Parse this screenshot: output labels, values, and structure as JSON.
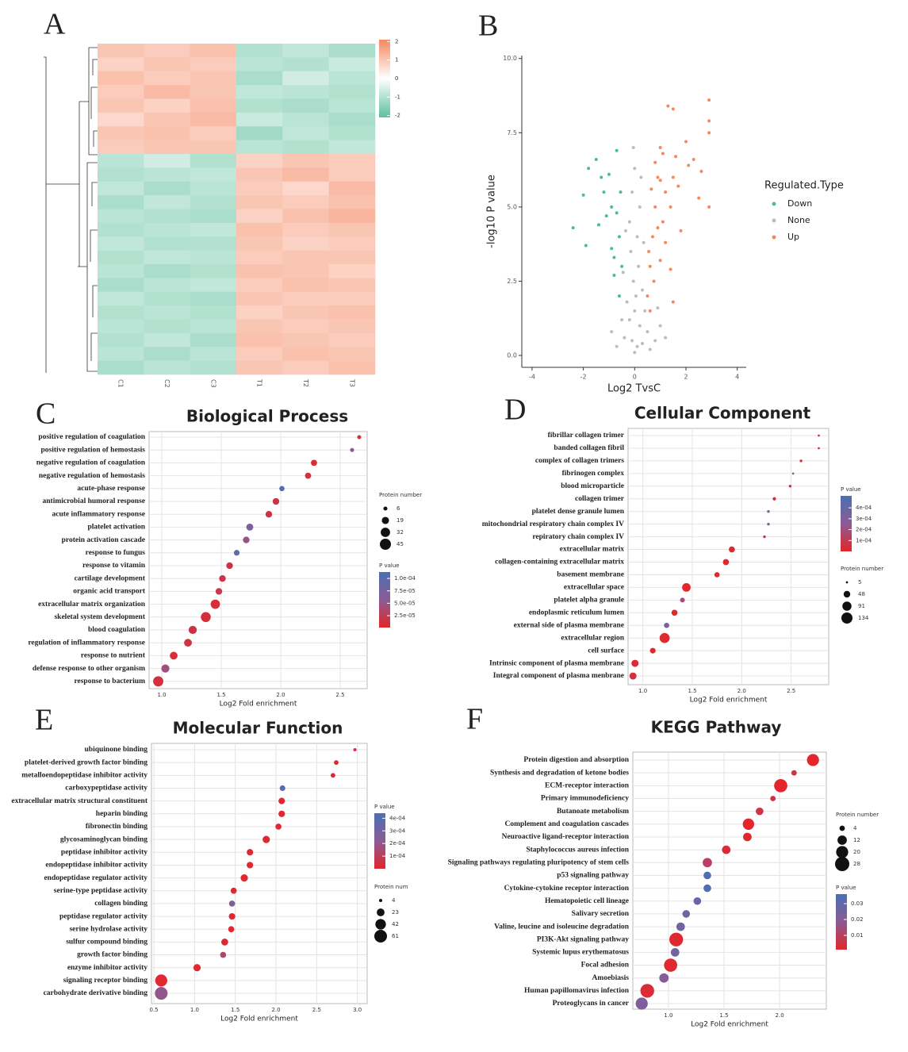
{
  "chart_data": [
    {
      "type": "heatmap",
      "panel_label": "A",
      "columns": [
        "C1",
        "C2",
        "C3",
        "T1",
        "T2",
        "T3"
      ],
      "values": [
        [
          1.0,
          0.9,
          1.1,
          -1.0,
          -0.8,
          -1.1
        ],
        [
          0.8,
          1.0,
          0.9,
          -0.9,
          -1.0,
          -0.7
        ],
        [
          1.1,
          0.9,
          1.0,
          -1.1,
          -0.6,
          -0.9
        ],
        [
          0.9,
          1.2,
          1.0,
          -0.8,
          -0.9,
          -1.0
        ],
        [
          1.0,
          0.8,
          1.1,
          -1.0,
          -1.1,
          -0.9
        ],
        [
          0.7,
          1.0,
          1.2,
          -0.7,
          -0.9,
          -1.1
        ],
        [
          1.0,
          1.1,
          0.9,
          -1.2,
          -0.8,
          -1.0
        ],
        [
          0.9,
          1.0,
          1.0,
          -0.9,
          -1.0,
          -0.8
        ],
        [
          -0.9,
          -0.6,
          -1.0,
          0.8,
          1.0,
          0.9
        ],
        [
          -1.0,
          -0.9,
          -0.8,
          1.0,
          1.2,
          0.9
        ],
        [
          -0.8,
          -1.1,
          -0.9,
          0.9,
          0.7,
          1.2
        ],
        [
          -1.1,
          -0.8,
          -1.0,
          1.0,
          0.9,
          1.1
        ],
        [
          -0.9,
          -1.0,
          -1.1,
          0.8,
          1.1,
          1.3
        ],
        [
          -1.0,
          -0.9,
          -0.8,
          1.1,
          0.9,
          1.0
        ],
        [
          -0.8,
          -1.0,
          -1.0,
          1.0,
          0.8,
          0.9
        ],
        [
          -1.0,
          -0.8,
          -0.9,
          0.9,
          1.0,
          1.0
        ],
        [
          -0.9,
          -1.1,
          -1.0,
          1.1,
          1.0,
          0.8
        ],
        [
          -1.1,
          -0.9,
          -0.8,
          0.9,
          1.1,
          1.0
        ],
        [
          -0.8,
          -1.0,
          -1.1,
          1.0,
          0.9,
          0.9
        ],
        [
          -1.0,
          -0.9,
          -1.0,
          0.8,
          1.0,
          1.1
        ],
        [
          -0.9,
          -1.0,
          -0.9,
          1.0,
          0.9,
          1.0
        ],
        [
          -1.0,
          -0.8,
          -1.1,
          1.1,
          1.0,
          0.9
        ],
        [
          -0.9,
          -1.1,
          -0.9,
          0.9,
          1.1,
          1.0
        ],
        [
          -1.1,
          -0.9,
          -1.0,
          1.0,
          0.9,
          1.1
        ]
      ],
      "zlim": [
        -2.1,
        2.1
      ],
      "zticks": [
        2,
        1,
        0,
        -1,
        -2
      ],
      "colors": [
        "#5dbf9d",
        "#ffffff",
        "#f58862"
      ]
    },
    {
      "type": "scatter",
      "panel_label": "B",
      "x_label": "Log2 TvsC",
      "y_label": "-log10 P value",
      "legend_title": "Regulated.Type",
      "xlim": [
        -4.4,
        4.35
      ],
      "xticks": [
        -4,
        -2,
        0,
        2,
        4
      ],
      "ylim": [
        -0.4,
        10.1
      ],
      "yticks": [
        {
          "value": 0,
          "label": "0.0"
        },
        {
          "value": 2.5,
          "label": "2.5"
        },
        {
          "value": 5,
          "label": "5.0"
        },
        {
          "value": 7.5,
          "label": "7.5"
        },
        {
          "value": 10,
          "label": "10.0"
        }
      ],
      "series": [
        {
          "name": "Down",
          "color": "#4fba96",
          "x": [
            -2.4,
            -2.0,
            -1.8,
            -1.5,
            -1.4,
            -1.2,
            -1.0,
            -0.9,
            -0.8,
            -0.7,
            -0.6,
            -0.5,
            -0.9,
            -1.1,
            -0.7,
            -1.9,
            -0.6,
            -0.8,
            -1.3,
            -0.55
          ],
          "values": [
            4.3,
            5.4,
            6.3,
            6.6,
            4.4,
            5.5,
            6.1,
            3.6,
            2.7,
            4.8,
            2.0,
            3.0,
            5.0,
            4.7,
            6.9,
            3.7,
            4.0,
            3.3,
            6.0,
            5.5
          ]
        },
        {
          "name": "None",
          "color": "#bdbdbd",
          "x": [
            0,
            0.1,
            -0.1,
            0.2,
            -0.2,
            0.3,
            -0.4,
            0.5,
            0.8,
            1.0,
            -0.7,
            0.05,
            -0.05,
            0.15,
            -0.15,
            0.1,
            -0.2,
            0.2,
            -0.1,
            0.0,
            0.3,
            -0.3,
            0.4,
            -0.45,
            0.35,
            -0.35,
            1.2,
            0.6,
            -0.9,
            0.0,
            -0.05,
            0.25,
            0.9,
            -0.5
          ],
          "values": [
            0.1,
            0.3,
            0.5,
            1.0,
            1.2,
            0.4,
            0.6,
            0.8,
            0.5,
            1.0,
            0.3,
            2.0,
            2.5,
            3.0,
            3.5,
            4.0,
            4.5,
            5.0,
            5.5,
            6.3,
            2.2,
            1.8,
            1.5,
            2.8,
            3.8,
            4.2,
            0.6,
            0.2,
            0.8,
            1.5,
            7.0,
            6.0,
            1.6,
            1.2
          ]
        },
        {
          "name": "Up",
          "color": "#f4895f",
          "x": [
            0.5,
            0.6,
            0.7,
            0.8,
            0.9,
            1.0,
            1.1,
            1.2,
            1.3,
            1.5,
            1.6,
            1.8,
            2.0,
            2.3,
            2.5,
            2.9,
            2.9,
            2.9,
            2.9,
            1.5,
            1.4,
            0.55,
            0.6,
            0.75,
            1.0,
            1.2,
            0.9,
            1.4,
            1.7,
            2.1,
            1.0,
            0.8,
            1.5,
            1.1,
            0.65,
            2.6
          ],
          "values": [
            2.0,
            3.0,
            4.0,
            5.0,
            6.0,
            7.0,
            4.5,
            5.5,
            8.4,
            8.3,
            6.7,
            4.2,
            7.2,
            6.6,
            5.3,
            8.6,
            7.5,
            7.9,
            5.0,
            1.8,
            2.9,
            3.5,
            1.5,
            2.5,
            3.2,
            3.8,
            4.3,
            5.0,
            5.7,
            6.4,
            5.9,
            6.5,
            6.0,
            6.8,
            5.6,
            6.2
          ]
        }
      ]
    },
    {
      "type": "dot",
      "panel_label": "C",
      "title": "Biological Process",
      "x_label": "Log2 Fold enrichment",
      "categories": [
        "positive regulation of coagulation",
        "positive regulation of hemostasis",
        "negative regulation of coagulation",
        "negative regulation of hemostasis",
        "acute-phase response",
        "antimicrobial humoral response",
        "acute inflammatory response",
        "platelet activation",
        "protein activation cascade",
        "response to fungus",
        "response to vitamin",
        "cartilage development",
        "organic acid transport",
        "extracellular matrix organization",
        "skeletal system development",
        "blood coagulation",
        "regulation of  inflammatory response",
        "response to nutrient",
        "defense response to other organism",
        "response to bacterium"
      ],
      "values": [
        2.66,
        2.6,
        2.28,
        2.23,
        2.01,
        1.96,
        1.9,
        1.74,
        1.71,
        1.63,
        1.57,
        1.51,
        1.48,
        1.45,
        1.37,
        1.26,
        1.22,
        1.1,
        1.03,
        0.97
      ],
      "sizes": [
        6,
        6,
        14,
        14,
        10,
        16,
        16,
        18,
        16,
        12,
        16,
        16,
        16,
        32,
        36,
        24,
        22,
        22,
        24,
        38
      ],
      "pvalues": [
        1e-05,
        6e-05,
        1e-05,
        1e-05,
        0.000105,
        1.5e-05,
        1.5e-05,
        7e-05,
        5e-05,
        0.0001,
        1.5e-05,
        1.5e-05,
        2e-05,
        1e-05,
        1e-05,
        1.5e-05,
        1.5e-05,
        1e-05,
        4.5e-05,
        1e-05
      ],
      "xlim": [
        0.893,
        2.727
      ],
      "xticks": [
        {
          "value": 1,
          "label": "1.0"
        },
        1.5,
        {
          "value": 2,
          "label": "2.0"
        },
        2.5
      ],
      "size_title": "Protein number",
      "size_ticks": [
        6,
        19,
        32,
        45
      ],
      "color_title": "P value",
      "clim": [
        1e-06,
        0.000113
      ],
      "color_ticks": [
        {
          "value": 0.0001,
          "label": "1.0e-04"
        },
        {
          "value": 7.5e-05,
          "label": "7.5e-05"
        },
        {
          "value": 5e-05,
          "label": "5.0e-05"
        },
        {
          "value": 2.5e-05,
          "label": "2.5e-05"
        }
      ],
      "colors": [
        "#e3262b",
        "#8b5b93",
        "#4b70b6"
      ]
    },
    {
      "type": "dot",
      "panel_label": "D",
      "title": "Cellular Component",
      "x_label": "Log2 Fold enrichment",
      "categories": [
        "fibrillar collagen trimer",
        "banded collagen fibril",
        "complex of collagen trimers",
        "fibrinogen complex",
        "blood microparticle",
        "collagen trimer",
        "platelet dense granule lumen",
        "mitochondrial respiratory chain complex IV",
        "repiratory chain complex IV",
        "extracellular matrix",
        "collagen-containing extracellular matrix",
        "basement membrane",
        "extracellular space",
        "platelet alpha granule",
        "endoplasmic reticulum lumen",
        "external side of plasma membrane",
        "extracellular region",
        "cell surface",
        "Intrinsic component of plasma membrane",
        "Integral component of plasma menbrane"
      ],
      "values": [
        2.78,
        2.78,
        2.6,
        2.52,
        2.49,
        2.33,
        2.27,
        2.27,
        2.23,
        1.9,
        1.84,
        1.75,
        1.44,
        1.4,
        1.32,
        1.24,
        1.22,
        1.1,
        0.92,
        0.9
      ],
      "sizes": [
        5,
        5,
        8,
        5,
        8,
        12,
        8,
        8,
        8,
        40,
        40,
        30,
        80,
        25,
        40,
        30,
        110,
        35,
        55,
        55
      ],
      "pvalues": [
        1e-05,
        1e-05,
        1e-05,
        0.0004,
        2e-05,
        2e-05,
        0.00035,
        0.0004,
        5e-05,
        1e-05,
        1e-05,
        1e-05,
        1e-05,
        0.0002,
        1e-05,
        0.00035,
        1e-05,
        1e-05,
        1e-05,
        5e-05
      ],
      "xlim": [
        0.85,
        2.88
      ],
      "xticks": [
        {
          "value": 1,
          "label": "1.0"
        },
        1.5,
        {
          "value": 2,
          "label": "2.0"
        },
        2.5
      ],
      "size_title": "Protein number",
      "size_ticks": [
        5,
        48,
        91,
        134
      ],
      "color_title": "P value",
      "clim": [
        0,
        0.00051
      ],
      "color_ticks": [
        {
          "value": 0.0004,
          "label": "4e-04"
        },
        {
          "value": 0.0003,
          "label": "3e-04"
        },
        {
          "value": 0.0002,
          "label": "2e-04"
        },
        {
          "value": 0.0001,
          "label": "1e-04"
        }
      ],
      "colors": [
        "#e3262b",
        "#8b5b93",
        "#4b70b6"
      ]
    },
    {
      "type": "dot",
      "panel_label": "E",
      "title": "Molecular Function",
      "x_label": "Log2 Fold enrichment",
      "categories": [
        "ubiquinone binding",
        "platelet-derived growth factor binding",
        "metalloendopeptidase inhibitor activity",
        "carboxypeptidase activity",
        "extracellular matrix structural constituent",
        "heparin binding",
        "fibronectin binding",
        "glycosaminoglycan binding",
        "peptidase inhibitor activity",
        "endopeptidase inhibitor activity",
        "endopeptidase regulator activity",
        "serine-type peptidase activity",
        "collagen binding",
        "peptidase regulator activity",
        "serine hydrolase activity",
        "sulfur compound binding",
        "growth factor binding",
        "enzyme inhibitor activity",
        "signaling receptor binding",
        "carbohydrate derivative binding"
      ],
      "values": [
        2.97,
        2.74,
        2.7,
        2.08,
        2.07,
        2.07,
        2.03,
        1.88,
        1.68,
        1.68,
        1.61,
        1.48,
        1.46,
        1.46,
        1.45,
        1.37,
        1.35,
        1.03,
        0.59,
        0.59
      ],
      "sizes": [
        4,
        8,
        8,
        12,
        16,
        16,
        14,
        20,
        16,
        16,
        20,
        14,
        14,
        16,
        14,
        18,
        14,
        20,
        55,
        61
      ],
      "pvalues": [
        5e-05,
        1e-05,
        1e-05,
        0.0004,
        1e-05,
        1e-05,
        1e-05,
        1e-05,
        1e-05,
        1e-05,
        1e-05,
        1e-05,
        0.00025,
        1e-05,
        1e-05,
        1e-05,
        0.00015,
        1e-05,
        1e-05,
        0.0002
      ],
      "xlim": [
        0.47,
        3.12
      ],
      "xticks": [
        0.5,
        {
          "value": 1,
          "label": "1.0"
        },
        1.5,
        {
          "value": 2,
          "label": "2.0"
        },
        2.5,
        {
          "value": 3,
          "label": "3.0"
        }
      ],
      "size_title": "Protein num",
      "size_ticks": [
        4,
        23,
        42,
        61
      ],
      "color_title": "P value",
      "clim": [
        0,
        0.00044
      ],
      "color_ticks": [
        {
          "value": 0.0004,
          "label": "4e-04"
        },
        {
          "value": 0.0003,
          "label": "3e-04"
        },
        {
          "value": 0.0002,
          "label": "2e-04"
        },
        {
          "value": 0.0001,
          "label": "1e-04"
        }
      ],
      "colors": [
        "#e3262b",
        "#8b5b93",
        "#4b70b6"
      ]
    },
    {
      "type": "dot",
      "panel_label": "F",
      "title": "KEGG Pathway",
      "x_label": "Log2 Fold enrichment",
      "categories": [
        "Protein digestion and absorption",
        "Synthesis and degradation of ketone bodies",
        "ECM-receptor interaction",
        "Primary immunodeficiency",
        "Butanoate metabolism",
        "Complement and coagulation cascades",
        "Neuroactive ligand-receptor interaction",
        "Staphylococcus aureus infection",
        "Signaling pathways regulating pluripotency of stem cells",
        "p53 signaling pathway",
        "Cytokine-cytokine receptor interaction",
        "Hematopoietic cell lineage",
        "Salivary secretion",
        "Valine, leucine and isoleucine degradation",
        "PI3K-Akt signaling pathway",
        "Systemic lupus erythematosus",
        "Focal adhesion",
        "Amoebiasis",
        "Human papillomavirus infection",
        "Proteoglycans in cancer"
      ],
      "values": [
        2.3,
        2.13,
        2.01,
        1.94,
        1.82,
        1.72,
        1.71,
        1.52,
        1.35,
        1.35,
        1.35,
        1.26,
        1.16,
        1.11,
        1.07,
        1.06,
        1.02,
        0.96,
        0.81,
        0.76
      ],
      "sizes": [
        20,
        4,
        24,
        4,
        8,
        18,
        10,
        10,
        12,
        8,
        8,
        8,
        8,
        10,
        26,
        10,
        24,
        12,
        26,
        20
      ],
      "pvalues": [
        0.001,
        0.005,
        0.001,
        0.005,
        0.005,
        0.001,
        0.002,
        0.003,
        0.01,
        0.035,
        0.035,
        0.028,
        0.025,
        0.025,
        0.002,
        0.025,
        0.002,
        0.02,
        0.003,
        0.022
      ],
      "xlim": [
        0.68,
        2.42
      ],
      "xticks": [
        {
          "value": 1,
          "label": "1.0"
        },
        1.5,
        {
          "value": 2,
          "label": "2.0"
        }
      ],
      "size_title": "Protein number",
      "size_ticks": [
        4,
        12,
        20,
        28
      ],
      "color_title": "P value",
      "clim": [
        0.001,
        0.036
      ],
      "color_ticks": [
        0.03,
        0.02,
        0.01
      ],
      "colors": [
        "#e3262b",
        "#8b5b93",
        "#4b70b6"
      ]
    }
  ]
}
